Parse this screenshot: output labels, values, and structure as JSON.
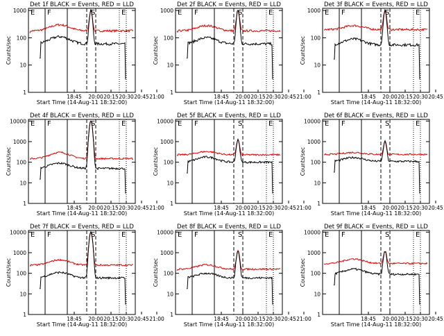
{
  "chart_data": {
    "type": "line",
    "layout": "3x3 grid of panels",
    "colors": {
      "events": "#000000",
      "lld": "#e00000"
    },
    "shared": {
      "xlabel": "Start Time (14-Aug-11 18:32:00)",
      "ylabel": "Counts/sec",
      "xtick_labels": [
        "18:45",
        "20:00",
        "20:15",
        "20:30",
        "20:45",
        "21:00"
      ],
      "xlim_minutes_since_start": [
        0,
        160
      ],
      "yscale": "log",
      "marker_labels": [
        "E",
        "F",
        "S",
        "E"
      ]
    },
    "panels": [
      {
        "title": "Det 1f BLACK = Events, RED = LLD",
        "yticks": [
          "1",
          "10",
          "100",
          "1000"
        ],
        "ylim": [
          1,
          1200
        ],
        "events_level": 60,
        "events_bump": 110,
        "lld_level": 180,
        "lld_bump": 300,
        "flare_peak": 1000
      },
      {
        "title": "Det 2f BLACK = Events, RED = LLD",
        "yticks": [
          "1",
          "10",
          "100",
          "1000"
        ],
        "ylim": [
          1,
          1200
        ],
        "events_level": 60,
        "events_bump": 100,
        "lld_level": 180,
        "lld_bump": 280,
        "flare_peak": 1000
      },
      {
        "title": "Det 3f BLACK = Events, RED = LLD",
        "yticks": [
          "1",
          "10",
          "100",
          "1000"
        ],
        "ylim": [
          1,
          1200
        ],
        "events_level": 55,
        "events_bump": 90,
        "lld_level": 200,
        "lld_bump": 280,
        "flare_peak": 1000
      },
      {
        "title": "Det 4f BLACK = Events, RED = LLD",
        "yticks": [
          "1",
          "10",
          "100",
          "1000",
          "10000"
        ],
        "ylim": [
          1,
          12000
        ],
        "events_level": 50,
        "events_bump": 90,
        "lld_level": 150,
        "lld_bump": 300,
        "flare_peak": 10000
      },
      {
        "title": "Det 5f BLACK = Events, RED = LLD",
        "yticks": [
          "1",
          "10",
          "100",
          "1000",
          "10000"
        ],
        "ylim": [
          1,
          12000
        ],
        "events_level": 100,
        "events_bump": 180,
        "lld_level": 230,
        "lld_bump": 330,
        "flare_peak": 1200
      },
      {
        "title": "Det 6f BLACK = Events, RED = LLD",
        "yticks": [
          "1",
          "10",
          "100",
          "1000",
          "10000"
        ],
        "ylim": [
          1,
          12000
        ],
        "events_level": 110,
        "events_bump": 170,
        "lld_level": 240,
        "lld_bump": 300,
        "flare_peak": 1000
      },
      {
        "title": "Det 7f BLACK = Events, RED = LLD",
        "yticks": [
          "1",
          "10",
          "100",
          "1000",
          "10000"
        ],
        "ylim": [
          1,
          12000
        ],
        "events_level": 60,
        "events_bump": 110,
        "lld_level": 250,
        "lld_bump": 450,
        "flare_peak": 10000
      },
      {
        "title": "Det 8f BLACK = Events, RED = LLD",
        "yticks": [
          "1",
          "10",
          "100",
          "1000",
          "10000"
        ],
        "ylim": [
          1,
          12000
        ],
        "events_level": 60,
        "events_bump": 100,
        "lld_level": 160,
        "lld_bump": 260,
        "flare_peak": 1200
      },
      {
        "title": "Det 9f BLACK = Events, RED = LLD",
        "yticks": [
          "1",
          "10",
          "100",
          "1000",
          "10000"
        ],
        "ylim": [
          1,
          12000
        ],
        "events_level": 90,
        "events_bump": 160,
        "lld_level": 300,
        "lld_bump": 500,
        "flare_peak": 1200
      }
    ]
  }
}
